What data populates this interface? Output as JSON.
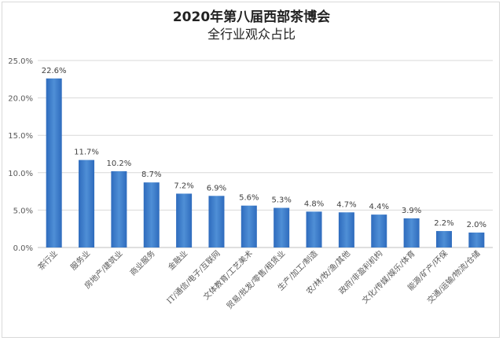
{
  "chart_data": {
    "type": "bar",
    "title_line1": "2020年第八届西部茶博会",
    "title_line2": "全行业观众占比",
    "xlabel": "",
    "ylabel": "",
    "ylim": [
      0,
      25
    ],
    "yticks": [
      "0.0%",
      "5.0%",
      "10.0%",
      "15.0%",
      "20.0%",
      "25.0%"
    ],
    "grid": true,
    "legend": "none",
    "bar_color": "#2e6bbd",
    "bar_color_light": "#4f8fd6",
    "categories": [
      "茶行业",
      "服务业",
      "房地产/建筑业",
      "商业服务",
      "金融业",
      "IT/通信/电子/互联网",
      "文体教育/工艺美术",
      "贸易/批发/零售/租赁业",
      "生产/加工/制造",
      "农/林/牧/渔/其他",
      "政府/非盈利机构",
      "文化/传媒/娱乐/体育",
      "能源/矿产/环保",
      "交通/运输/物流/仓储"
    ],
    "values": [
      22.6,
      11.7,
      10.2,
      8.7,
      7.2,
      6.9,
      5.6,
      5.3,
      4.8,
      4.7,
      4.4,
      3.9,
      2.2,
      2.0
    ],
    "value_labels": [
      "22.6%",
      "11.7%",
      "10.2%",
      "8.7%",
      "7.2%",
      "6.9%",
      "5.6%",
      "5.3%",
      "4.8%",
      "4.7%",
      "4.4%",
      "3.9%",
      "2.2%",
      "2.0%"
    ]
  }
}
